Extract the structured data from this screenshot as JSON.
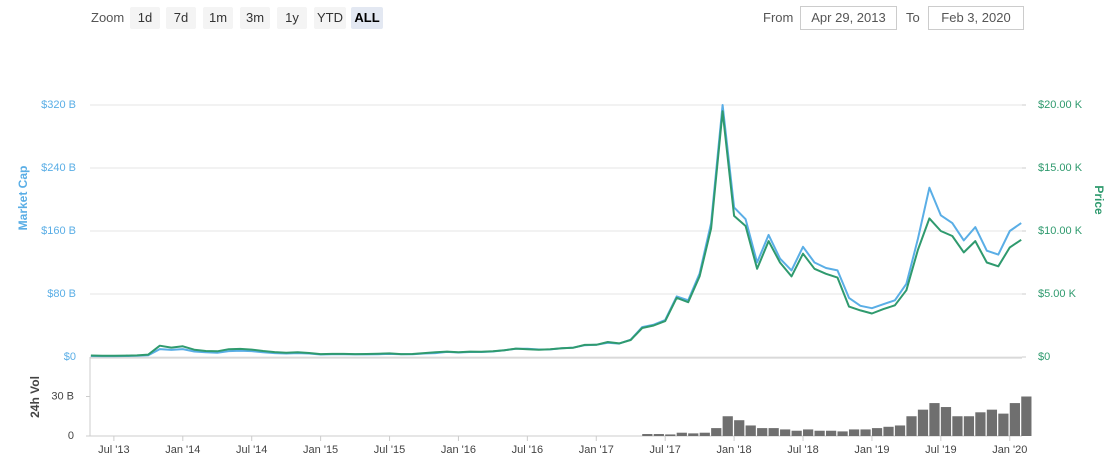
{
  "controls": {
    "zoom_label": "Zoom",
    "zoom_buttons": [
      "1d",
      "7d",
      "1m",
      "3m",
      "1y",
      "YTD",
      "ALL"
    ],
    "selected": "ALL",
    "from_label": "From",
    "from": "Apr 29, 2013",
    "to_label": "To",
    "to": "Feb 3, 2020"
  },
  "chart_data": [
    {
      "type": "line",
      "y_label": "Market Cap",
      "y2_label": "Price",
      "x": [
        "2013-05",
        "2013-06",
        "2013-07",
        "2013-08",
        "2013-09",
        "2013-10",
        "2013-11",
        "2013-12",
        "2014-01",
        "2014-02",
        "2014-03",
        "2014-04",
        "2014-05",
        "2014-06",
        "2014-07",
        "2014-08",
        "2014-09",
        "2014-10",
        "2014-11",
        "2014-12",
        "2015-01",
        "2015-02",
        "2015-03",
        "2015-04",
        "2015-05",
        "2015-06",
        "2015-07",
        "2015-08",
        "2015-09",
        "2015-10",
        "2015-11",
        "2015-12",
        "2016-01",
        "2016-02",
        "2016-03",
        "2016-04",
        "2016-05",
        "2016-06",
        "2016-07",
        "2016-08",
        "2016-09",
        "2016-10",
        "2016-11",
        "2016-12",
        "2017-01",
        "2017-02",
        "2017-03",
        "2017-04",
        "2017-05",
        "2017-06",
        "2017-07",
        "2017-08",
        "2017-09",
        "2017-10",
        "2017-11",
        "2017-12",
        "2018-01",
        "2018-02",
        "2018-03",
        "2018-04",
        "2018-05",
        "2018-06",
        "2018-07",
        "2018-08",
        "2018-09",
        "2018-10",
        "2018-11",
        "2018-12",
        "2019-01",
        "2019-02",
        "2019-03",
        "2019-04",
        "2019-05",
        "2019-06",
        "2019-07",
        "2019-08",
        "2019-09",
        "2019-10",
        "2019-11",
        "2019-12",
        "2020-01",
        "2020-02"
      ],
      "xlim": [
        "2013-04-29",
        "2020-02-03"
      ],
      "xticks": [
        {
          "value": "2013-07",
          "label": "Jul '13"
        },
        {
          "value": "2014-01",
          "label": "Jan '14"
        },
        {
          "value": "2014-07",
          "label": "Jul '14"
        },
        {
          "value": "2015-01",
          "label": "Jan '15"
        },
        {
          "value": "2015-07",
          "label": "Jul '15"
        },
        {
          "value": "2016-01",
          "label": "Jan '16"
        },
        {
          "value": "2016-07",
          "label": "Jul '16"
        },
        {
          "value": "2017-01",
          "label": "Jan '17"
        },
        {
          "value": "2017-07",
          "label": "Jul '17"
        },
        {
          "value": "2018-01",
          "label": "Jan '18"
        },
        {
          "value": "2018-07",
          "label": "Jul '18"
        },
        {
          "value": "2019-01",
          "label": "Jan '19"
        },
        {
          "value": "2019-07",
          "label": "Jul '19"
        },
        {
          "value": "2020-01",
          "label": "Jan '20"
        }
      ],
      "ylim": [
        0,
        380
      ],
      "yticks": [
        {
          "value": 0,
          "label": "$0"
        },
        {
          "value": 80,
          "label": "$80 B"
        },
        {
          "value": 160,
          "label": "$160 B"
        },
        {
          "value": 240,
          "label": "$240 B"
        },
        {
          "value": 320,
          "label": "$320 B"
        }
      ],
      "y2lim": [
        0,
        23750
      ],
      "y2ticks": [
        {
          "value": 0,
          "label": "$0"
        },
        {
          "value": 5000,
          "label": "$5.00 K"
        },
        {
          "value": 10000,
          "label": "$10.00 K"
        },
        {
          "value": 15000,
          "label": "$15.00 K"
        },
        {
          "value": 20000,
          "label": "$20.00 K"
        }
      ],
      "grid": true,
      "series": [
        {
          "name": "Market Cap",
          "color": "#5aaee6",
          "values": [
            1.3,
            1.2,
            1.1,
            1.3,
            1.5,
            2.2,
            10,
            9,
            10,
            7,
            6,
            5.5,
            7.5,
            8,
            7.5,
            6,
            5,
            4.5,
            5,
            4.5,
            3.2,
            3.5,
            3.5,
            3.3,
            3.3,
            3.6,
            4,
            3.4,
            3.4,
            4.5,
            5,
            6.5,
            5.7,
            6.4,
            6.3,
            7,
            8.5,
            10.5,
            10.5,
            9.5,
            9.7,
            11,
            12,
            15,
            15.5,
            18,
            17,
            22,
            38,
            41,
            47,
            77,
            72,
            106,
            170,
            320,
            190,
            175,
            120,
            155,
            125,
            110,
            140,
            120,
            113,
            110,
            75,
            65,
            62,
            67,
            72,
            93,
            150,
            215,
            180,
            170,
            148,
            165,
            135,
            130,
            160,
            170
          ]
        },
        {
          "name": "Price",
          "color": "#2f9a6e",
          "axis": "y2",
          "values": [
            117,
            100,
            95,
            115,
            130,
            190,
            900,
            750,
            850,
            580,
            480,
            450,
            620,
            640,
            590,
            480,
            390,
            340,
            380,
            320,
            230,
            250,
            250,
            230,
            235,
            260,
            285,
            230,
            235,
            310,
            370,
            430,
            380,
            430,
            415,
            450,
            530,
            670,
            620,
            575,
            610,
            700,
            740,
            960,
            970,
            1190,
            1080,
            1350,
            2300,
            2500,
            2850,
            4700,
            4350,
            6400,
            10200,
            19500,
            11200,
            10400,
            7000,
            9200,
            7500,
            6400,
            8200,
            7000,
            6600,
            6300,
            4000,
            3700,
            3450,
            3800,
            4100,
            5300,
            8500,
            11000,
            10000,
            9600,
            8300,
            9200,
            7500,
            7200,
            8700,
            9300
          ]
        }
      ]
    },
    {
      "type": "bar",
      "y_label": "24h Vol",
      "ylim": [
        0,
        60
      ],
      "yticks": [
        0,
        {
          "value": 30,
          "label": "30 B"
        }
      ],
      "color": "#6f6f6f",
      "values": [
        0,
        0,
        0,
        0,
        0,
        0,
        0,
        0,
        0,
        0,
        0,
        0,
        0,
        0,
        0,
        0,
        0,
        0,
        0,
        0,
        0,
        0,
        0,
        0,
        0,
        0,
        0,
        0,
        0,
        0,
        0,
        0,
        0,
        0,
        0,
        0,
        0,
        0,
        0,
        0,
        0,
        0,
        0,
        0,
        0,
        0,
        0,
        0,
        1.5,
        1.5,
        1.2,
        2.5,
        2,
        2.5,
        6,
        15,
        12,
        8,
        6,
        6,
        5,
        4,
        5,
        4,
        4,
        3.5,
        5,
        5,
        6,
        7,
        8,
        15,
        20,
        25,
        22,
        15,
        15,
        18,
        20,
        17,
        25,
        30
      ]
    }
  ]
}
